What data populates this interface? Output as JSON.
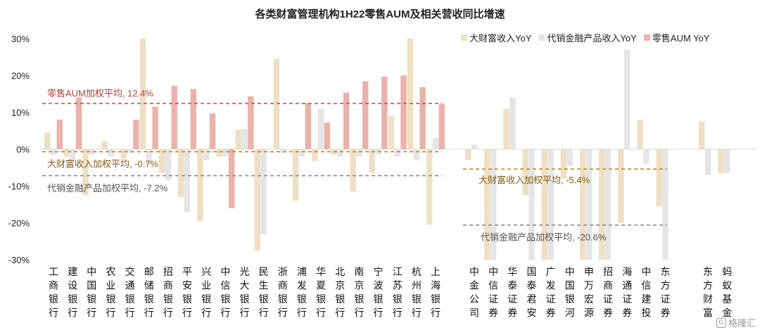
{
  "chart_data": {
    "type": "bar",
    "title": "各类财富管理机构1H22零售AUM及相关营收同比增速",
    "ylim": [
      -30,
      30
    ],
    "yticks": [
      "-30%",
      "-20%",
      "-10%",
      "0%",
      "10%",
      "20%",
      "30%"
    ],
    "grid": false,
    "legend_position": "top-right",
    "colors": {
      "wealth": "#efdfc4",
      "agency": "#e5e5e8",
      "retail": "#eab2aa",
      "line_retail": "#c0504d",
      "line_wealth": "#c08a2c",
      "line_agency": "#8c8c8c",
      "label_retail": "#b04030",
      "label_wealth": "#8a5a10",
      "label_agency": "#555555"
    },
    "categories": [
      "工商银行",
      "建设银行",
      "中国银行",
      "农业银行",
      "交通银行",
      "邮储银行",
      "招商银行",
      "平安银行",
      "兴业银行",
      "中信银行",
      "光大银行",
      "民生银行",
      "浙商银行",
      "浦发银行",
      "华夏银行",
      "北京银行",
      "南京银行",
      "宁波银行",
      "江苏银行",
      "杭州银行",
      "上海银行",
      "中金公司",
      "中信证券",
      "华泰证券",
      "国泰君安",
      "广发证券",
      "中国银河",
      "申万宏源",
      "招商证券",
      "海通证券",
      "中信建投",
      "东方证券",
      "东方财富",
      "蚂蚁基金"
    ],
    "groups": [
      21,
      11,
      2
    ],
    "series": [
      {
        "name": "大财富收入YoY",
        "key": "wealth",
        "values": [
          4.5,
          -2.0,
          -12.5,
          2.2,
          -2.5,
          30,
          -6.5,
          -13.0,
          -19.5,
          -2.0,
          5.3,
          -27.5,
          24.5,
          -14.0,
          -3.2,
          -1.5,
          -11.5,
          -6.5,
          9.0,
          30,
          -20.5,
          -3.0,
          -30,
          11.0,
          -12.5,
          -30,
          -8.0,
          -30,
          -30,
          -20.0,
          8.0,
          -15.5,
          7.5,
          -6.5
        ]
      },
      {
        "name": "代销金融产品收入YoY",
        "key": "agency",
        "values": [
          -1.5,
          -3.0,
          -1.5,
          -2.0,
          -1.0,
          -4.0,
          -8.5,
          -17.0,
          -3.0,
          -2.0,
          5.5,
          -23.0,
          -1.0,
          -2.0,
          11.0,
          -2.0,
          -2.0,
          -1.5,
          -2.0,
          -3.0,
          3.0,
          1.2,
          -30,
          14.0,
          -30,
          -30,
          -4.5,
          -30,
          -30,
          27.0,
          -4.0,
          -30,
          -7.0,
          -6.5
        ]
      },
      {
        "name": "零售AUM YoY",
        "key": "retail",
        "values": [
          8.0,
          14.0,
          null,
          null,
          8.0,
          11.5,
          17.2,
          16.3,
          9.7,
          -16.0,
          14.3,
          null,
          null,
          12.5,
          7.2,
          15.3,
          18.4,
          19.7,
          20.0,
          16.8,
          12.2,
          null,
          null,
          null,
          null,
          null,
          null,
          null,
          null,
          null,
          null,
          null,
          null,
          null
        ]
      }
    ],
    "reference_lines": [
      {
        "key": "retail",
        "label": "零售AUM加权平均, 12.4%",
        "value": 12.4,
        "group": 0
      },
      {
        "key": "wealth",
        "label": "大财富收入加权平均, -0.7%",
        "value": -0.7,
        "group": 0
      },
      {
        "key": "agency",
        "label": "代销金融产品加权平均, -7.2%",
        "value": -7.2,
        "group": 0
      },
      {
        "key": "wealth",
        "label": "大财富收入加权平均, -5.4%",
        "value": -5.4,
        "group": 1
      },
      {
        "key": "agency",
        "label": "代销金融产品加权平均, -20.6%",
        "value": -20.6,
        "group": 1
      }
    ]
  },
  "watermark": "格隆汇"
}
